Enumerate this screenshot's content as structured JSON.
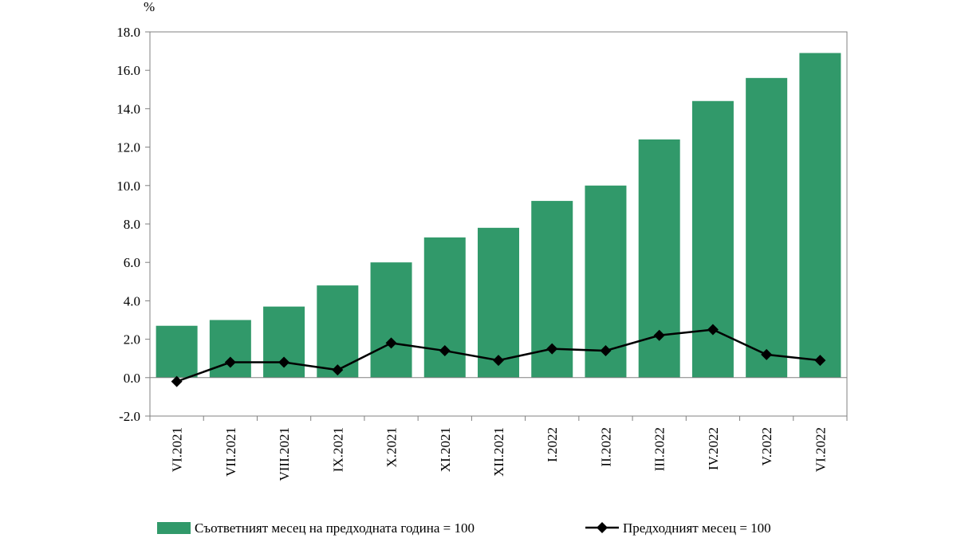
{
  "chart_data": {
    "type": "bar",
    "y_unit": "%",
    "categories": [
      "VI.2021",
      "VII.2021",
      "VIII.2021",
      "IX.2021",
      "X.2021",
      "XI.2021",
      "XII.2021",
      "I.2022",
      "II.2022",
      "III.2022",
      "IV.2022",
      "V.2022",
      "VI.2022"
    ],
    "series": [
      {
        "name": "Съответният месец на предходната година = 100",
        "type": "bar",
        "color": "#31996a",
        "values": [
          2.7,
          3.0,
          3.7,
          4.8,
          6.0,
          7.3,
          7.8,
          9.2,
          10.0,
          12.4,
          14.4,
          15.6,
          16.9
        ]
      },
      {
        "name": "Предходният месец = 100",
        "type": "line",
        "color": "#000000",
        "marker": "diamond",
        "values": [
          -0.2,
          0.8,
          0.8,
          0.4,
          1.8,
          1.4,
          0.9,
          1.5,
          1.4,
          2.2,
          2.5,
          1.2,
          0.9
        ]
      }
    ],
    "ylim": [
      -2.0,
      18.0
    ],
    "yticks": [
      "-2.0",
      "0.0",
      "2.0",
      "4.0",
      "6.0",
      "8.0",
      "10.0",
      "12.0",
      "14.0",
      "16.0",
      "18.0"
    ],
    "grid": false,
    "legend_position": "bottom"
  }
}
